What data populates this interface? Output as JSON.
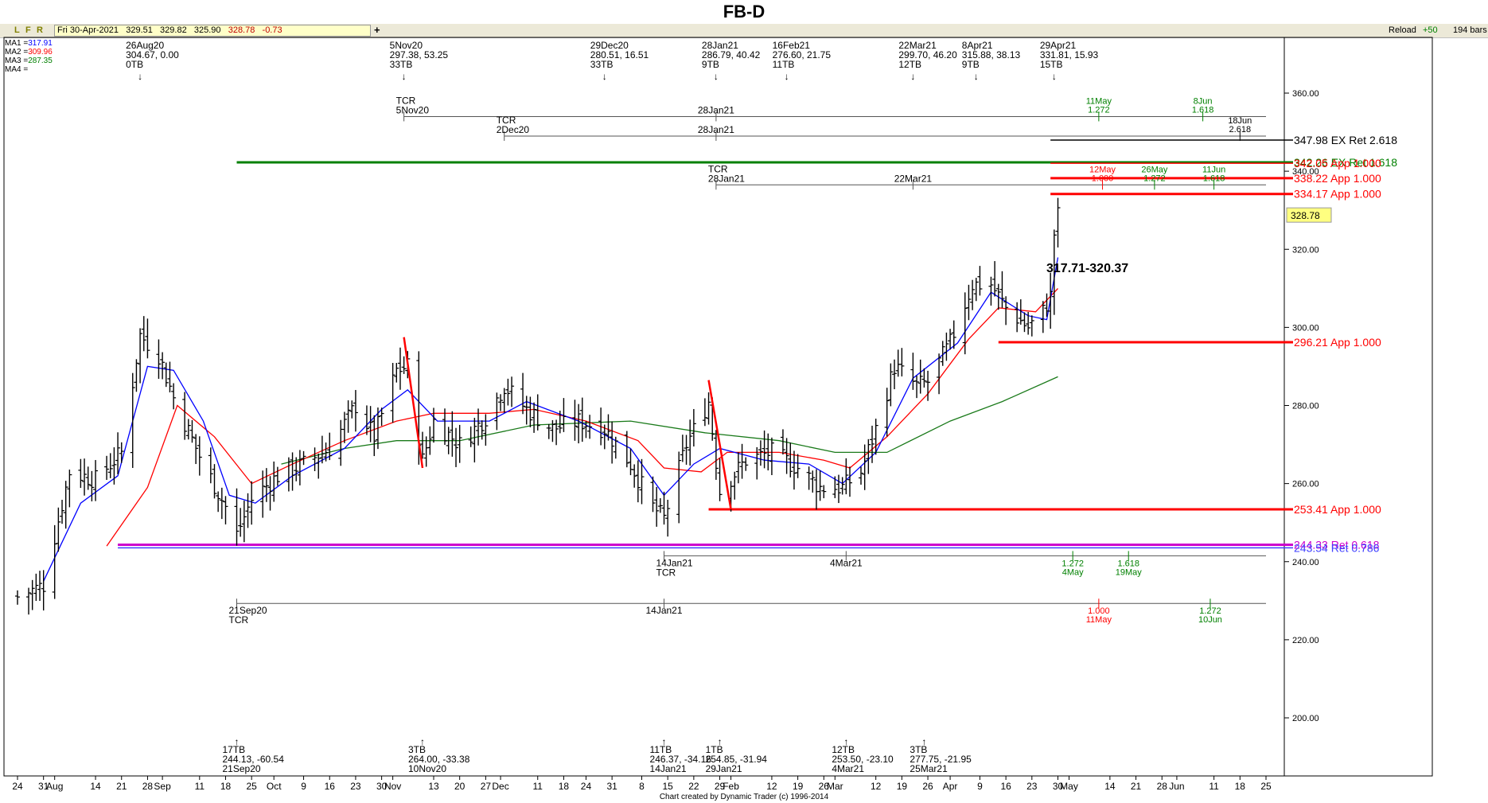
{
  "title": "FB-D",
  "toolbar": {
    "letters": [
      "L",
      "F",
      "R"
    ],
    "quote": [
      "Fri 30-Apr-2021",
      "329.51",
      "329.82",
      "325.90",
      "328.78",
      "-0.73"
    ],
    "plus": "+",
    "reload": "Reload",
    "plus50": "+50",
    "bars": "194 bars"
  },
  "ma_legend": [
    {
      "label": "MA1 =",
      "value": "317.91",
      "color": "#0000ff"
    },
    {
      "label": "MA2 =",
      "value": "309.96",
      "color": "#ff0000"
    },
    {
      "label": "MA3 =",
      "value": "287.35",
      "color": "#008000"
    },
    {
      "label": "MA4 =",
      "value": "",
      "color": "#000000"
    }
  ],
  "colors": {
    "ma1": "#0000ff",
    "ma2": "#ff0000",
    "ma3": "#1a7a1a",
    "red": "#ff0000",
    "green": "#008000",
    "magenta": "#cc00cc",
    "blue": "#0000ff"
  },
  "footer": "Chart created by Dynamic Trader  (c)  1996-2014",
  "last_price": "328.78",
  "chart_data": {
    "type": "ohlc-bar",
    "x_start": "2020-07-24",
    "x_end": "2021-06-25",
    "ylim": [
      185,
      373
    ],
    "y_ticks": [
      200,
      220,
      240,
      260,
      280,
      300,
      320,
      340,
      360
    ],
    "y_tick_labels": [
      "200.00",
      "220.00",
      "240.00",
      "260.00",
      "280.00",
      "300.00",
      "320.00",
      "340.00",
      "360.00"
    ],
    "x_ticks": [
      {
        "date": "2020-07-24",
        "label": "24"
      },
      {
        "date": "2020-07-31",
        "label": "31"
      },
      {
        "date": "2020-08-03",
        "label": "Aug"
      },
      {
        "date": "2020-08-14",
        "label": "14"
      },
      {
        "date": "2020-08-21",
        "label": "21"
      },
      {
        "date": "2020-08-28",
        "label": "28"
      },
      {
        "date": "2020-09-01",
        "label": "Sep"
      },
      {
        "date": "2020-09-11",
        "label": "11"
      },
      {
        "date": "2020-09-18",
        "label": "18"
      },
      {
        "date": "2020-09-25",
        "label": "25"
      },
      {
        "date": "2020-10-01",
        "label": "Oct"
      },
      {
        "date": "2020-10-09",
        "label": "9"
      },
      {
        "date": "2020-10-16",
        "label": "16"
      },
      {
        "date": "2020-10-23",
        "label": "23"
      },
      {
        "date": "2020-10-30",
        "label": "30"
      },
      {
        "date": "2020-11-02",
        "label": "Nov"
      },
      {
        "date": "2020-11-13",
        "label": "13"
      },
      {
        "date": "2020-11-20",
        "label": "20"
      },
      {
        "date": "2020-11-27",
        "label": "27"
      },
      {
        "date": "2020-12-01",
        "label": "Dec"
      },
      {
        "date": "2020-12-11",
        "label": "11"
      },
      {
        "date": "2020-12-18",
        "label": "18"
      },
      {
        "date": "2020-12-24",
        "label": "24"
      },
      {
        "date": "2020-12-31",
        "label": "31"
      },
      {
        "date": "2021-01-08",
        "label": "8"
      },
      {
        "date": "2021-01-15",
        "label": "15"
      },
      {
        "date": "2021-01-22",
        "label": "22"
      },
      {
        "date": "2021-01-29",
        "label": "29"
      },
      {
        "date": "2021-02-01",
        "label": "Feb"
      },
      {
        "date": "2021-02-12",
        "label": "12"
      },
      {
        "date": "2021-02-19",
        "label": "19"
      },
      {
        "date": "2021-02-26",
        "label": "26"
      },
      {
        "date": "2021-03-01",
        "label": "Mar"
      },
      {
        "date": "2021-03-12",
        "label": "12"
      },
      {
        "date": "2021-03-19",
        "label": "19"
      },
      {
        "date": "2021-03-26",
        "label": "26"
      },
      {
        "date": "2021-04-01",
        "label": "Apr"
      },
      {
        "date": "2021-04-09",
        "label": "9"
      },
      {
        "date": "2021-04-16",
        "label": "16"
      },
      {
        "date": "2021-04-23",
        "label": "23"
      },
      {
        "date": "2021-04-30",
        "label": "30"
      },
      {
        "date": "2021-05-03",
        "label": "May"
      },
      {
        "date": "2021-05-14",
        "label": "14"
      },
      {
        "date": "2021-05-21",
        "label": "21"
      },
      {
        "date": "2021-05-28",
        "label": "28"
      },
      {
        "date": "2021-06-01",
        "label": "Jun"
      },
      {
        "date": "2021-06-11",
        "label": "11"
      },
      {
        "date": "2021-06-18",
        "label": "18"
      },
      {
        "date": "2021-06-25",
        "label": "25"
      }
    ],
    "price_path": [
      [
        "2020-07-24",
        231
      ],
      [
        "2020-07-31",
        234
      ],
      [
        "2020-08-07",
        263
      ],
      [
        "2020-08-14",
        261
      ],
      [
        "2020-08-21",
        268
      ],
      [
        "2020-08-26",
        298
      ],
      [
        "2020-08-31",
        293
      ],
      [
        "2020-09-04",
        282
      ],
      [
        "2020-09-11",
        267
      ],
      [
        "2020-09-18",
        254
      ],
      [
        "2020-09-21",
        247
      ],
      [
        "2020-09-25",
        256
      ],
      [
        "2020-10-02",
        262
      ],
      [
        "2020-10-09",
        265
      ],
      [
        "2020-10-16",
        269
      ],
      [
        "2020-10-23",
        280
      ],
      [
        "2020-10-28",
        272
      ],
      [
        "2020-11-03",
        289
      ],
      [
        "2020-11-06",
        290
      ],
      [
        "2020-11-10",
        266
      ],
      [
        "2020-11-13",
        276
      ],
      [
        "2020-11-20",
        270
      ],
      [
        "2020-11-27",
        277
      ],
      [
        "2020-12-02",
        285
      ],
      [
        "2020-12-08",
        279
      ],
      [
        "2020-12-15",
        274
      ],
      [
        "2020-12-22",
        276
      ],
      [
        "2020-12-29",
        274
      ],
      [
        "2021-01-05",
        265
      ],
      [
        "2021-01-11",
        254
      ],
      [
        "2021-01-14",
        251
      ],
      [
        "2021-01-20",
        270
      ],
      [
        "2021-01-26",
        281
      ],
      [
        "2021-01-29",
        258
      ],
      [
        "2021-02-05",
        266
      ],
      [
        "2021-02-12",
        268
      ],
      [
        "2021-02-19",
        264
      ],
      [
        "2021-02-25",
        259
      ],
      [
        "2021-03-03",
        259
      ],
      [
        "2021-03-08",
        263
      ],
      [
        "2021-03-12",
        274
      ],
      [
        "2021-03-17",
        290
      ],
      [
        "2021-03-23",
        285
      ],
      [
        "2021-03-26",
        286
      ],
      [
        "2021-04-01",
        296
      ],
      [
        "2021-04-07",
        311
      ],
      [
        "2021-04-12",
        311
      ],
      [
        "2021-04-16",
        305
      ],
      [
        "2021-04-22",
        300
      ],
      [
        "2021-04-26",
        304
      ],
      [
        "2021-04-28",
        308
      ],
      [
        "2021-04-29",
        324
      ],
      [
        "2021-04-30",
        328.78
      ]
    ],
    "ma1_points": [
      [
        "2020-07-31",
        235
      ],
      [
        "2020-08-10",
        255
      ],
      [
        "2020-08-20",
        262
      ],
      [
        "2020-08-28",
        290
      ],
      [
        "2020-09-04",
        289
      ],
      [
        "2020-09-12",
        276
      ],
      [
        "2020-09-19",
        257
      ],
      [
        "2020-09-26",
        255
      ],
      [
        "2020-10-06",
        262
      ],
      [
        "2020-10-20",
        269
      ],
      [
        "2020-10-30",
        279
      ],
      [
        "2020-11-06",
        284
      ],
      [
        "2020-11-14",
        276
      ],
      [
        "2020-11-28",
        276
      ],
      [
        "2020-12-08",
        281
      ],
      [
        "2020-12-22",
        276
      ],
      [
        "2021-01-05",
        269
      ],
      [
        "2021-01-14",
        257
      ],
      [
        "2021-01-22",
        265
      ],
      [
        "2021-01-29",
        269
      ],
      [
        "2021-02-10",
        266
      ],
      [
        "2021-02-22",
        265
      ],
      [
        "2021-03-03",
        260
      ],
      [
        "2021-03-12",
        268
      ],
      [
        "2021-03-22",
        287
      ],
      [
        "2021-04-03",
        296
      ],
      [
        "2021-04-12",
        309
      ],
      [
        "2021-04-22",
        303
      ],
      [
        "2021-04-27",
        302
      ],
      [
        "2021-04-30",
        317.91
      ]
    ],
    "ma2_points": [
      [
        "2020-08-17",
        244
      ],
      [
        "2020-08-28",
        259
      ],
      [
        "2020-09-05",
        280
      ],
      [
        "2020-09-15",
        272
      ],
      [
        "2020-09-25",
        260
      ],
      [
        "2020-10-06",
        265
      ],
      [
        "2020-10-20",
        271
      ],
      [
        "2020-11-03",
        276
      ],
      [
        "2020-11-13",
        278
      ],
      [
        "2020-11-28",
        278
      ],
      [
        "2020-12-10",
        279
      ],
      [
        "2020-12-24",
        276
      ],
      [
        "2021-01-07",
        271
      ],
      [
        "2021-01-14",
        264
      ],
      [
        "2021-01-24",
        263
      ],
      [
        "2021-01-31",
        268
      ],
      [
        "2021-02-14",
        268
      ],
      [
        "2021-02-26",
        266
      ],
      [
        "2021-03-05",
        264
      ],
      [
        "2021-03-15",
        272
      ],
      [
        "2021-03-26",
        283
      ],
      [
        "2021-04-06",
        297
      ],
      [
        "2021-04-14",
        305
      ],
      [
        "2021-04-24",
        304
      ],
      [
        "2021-04-30",
        309.96
      ]
    ],
    "ma3_points": [
      [
        "2020-10-03",
        265
      ],
      [
        "2020-10-20",
        269
      ],
      [
        "2020-11-03",
        271
      ],
      [
        "2020-11-20",
        271
      ],
      [
        "2020-12-10",
        275
      ],
      [
        "2021-01-05",
        276
      ],
      [
        "2021-01-25",
        273
      ],
      [
        "2021-02-14",
        271
      ],
      [
        "2021-03-01",
        268
      ],
      [
        "2021-03-15",
        268
      ],
      [
        "2021-04-01",
        276
      ],
      [
        "2021-04-15",
        281
      ],
      [
        "2021-04-30",
        287.35
      ]
    ],
    "swings_top": [
      {
        "date": "2020-08-26",
        "lines": [
          "26Aug20",
          "304.67, 0.00",
          "0TB"
        ]
      },
      {
        "date": "2020-11-05",
        "lines": [
          "5Nov20",
          "297.38, 53.25",
          "33TB"
        ]
      },
      {
        "date": "2020-12-29",
        "lines": [
          "29Dec20",
          "280.51, 16.51",
          "33TB"
        ]
      },
      {
        "date": "2021-01-28",
        "lines": [
          "28Jan21",
          "286.79, 40.42",
          "9TB"
        ]
      },
      {
        "date": "2021-02-16",
        "lines": [
          "16Feb21",
          "276.60, 21.75",
          "11TB"
        ]
      },
      {
        "date": "2021-03-22",
        "lines": [
          "22Mar21",
          "299.70, 46.20",
          "12TB"
        ]
      },
      {
        "date": "2021-04-08",
        "lines": [
          "8Apr21",
          "315.88, 38.13",
          "9TB"
        ]
      },
      {
        "date": "2021-04-29",
        "lines": [
          "29Apr21",
          "331.81, 15.93",
          "15TB"
        ]
      }
    ],
    "swings_bottom": [
      {
        "date": "2020-09-21",
        "lines": [
          "17TB",
          "244.13, -60.54",
          "21Sep20"
        ]
      },
      {
        "date": "2020-11-10",
        "lines": [
          "3TB",
          "264.00, -33.38",
          "10Nov20"
        ]
      },
      {
        "date": "2021-01-14",
        "lines": [
          "11TB",
          "246.37, -34.16",
          "14Jan21"
        ]
      },
      {
        "date": "2021-01-29",
        "lines": [
          "1TB",
          "254.85, -31.94",
          "29Jan21"
        ]
      },
      {
        "date": "2021-03-04",
        "lines": [
          "12TB",
          "253.50, -23.10",
          "4Mar21"
        ]
      },
      {
        "date": "2021-03-25",
        "lines": [
          "3TB",
          "277.75, -21.95",
          "25Mar21"
        ]
      }
    ],
    "price_levels": [
      {
        "price": 347.98,
        "label": "347.98 EX Ret 2.618",
        "color": "#000000",
        "x0": "2021-04-28",
        "thick": false
      },
      {
        "price": 342.26,
        "label": "342.26 EX Ret 1.618",
        "color": "#008000",
        "x0": "2020-09-21",
        "thick": true
      },
      {
        "price": 342.05,
        "label": "342.05 App 1.000",
        "color": "#ff0000",
        "x0": "2021-04-28",
        "thick": false
      },
      {
        "price": 338.22,
        "label": "338.22 App 1.000",
        "color": "#ff0000",
        "x0": "2021-04-28",
        "thick": true
      },
      {
        "price": 334.17,
        "label": "334.17 App 1.000",
        "color": "#ff0000",
        "x0": "2021-04-28",
        "thick": true
      },
      {
        "price": 296.21,
        "label": "296.21 App 1.000",
        "color": "#ff0000",
        "x0": "2021-04-14",
        "thick": true
      },
      {
        "price": 253.41,
        "label": "253.41 App 1.000",
        "color": "#ff0000",
        "x0": "2021-01-26",
        "thick": true
      },
      {
        "price": 244.33,
        "label": "244.33 Ret 0.618",
        "color": "#cc00cc",
        "x0": "2020-08-20",
        "thick": true
      },
      {
        "price": 243.54,
        "label": "243.54 Ret 0.786",
        "color": "#4040ff",
        "x0": "2020-08-20",
        "thick": false
      }
    ],
    "range_label": "317.71-320.37",
    "last_price_tag": "328.78"
  },
  "time_top": [
    {
      "y_price": 354,
      "x0": "2020-11-05",
      "x1": "2021-06-25",
      "left_label": [
        "TCR",
        "5Nov20"
      ],
      "mid_label": "28Jan21",
      "mid_date": "2021-01-28",
      "projections": [
        {
          "date": "2021-05-11",
          "lines": [
            "11May",
            "1.272"
          ],
          "color": "#008000"
        },
        {
          "date": "2021-06-08",
          "lines": [
            "8Jun",
            "1.618"
          ],
          "color": "#008000"
        }
      ]
    },
    {
      "y_price": 349,
      "x0": "2020-12-02",
      "x1": "2021-06-25",
      "left_label": [
        "TCR",
        "2Dec20"
      ],
      "mid_label": "28Jan21",
      "mid_date": "2021-01-28",
      "projections": [
        {
          "date": "2021-06-18",
          "lines": [
            "18Jun",
            "2.618"
          ],
          "color": "#000000"
        }
      ]
    },
    {
      "y_price": 336.5,
      "x0": "2021-01-28",
      "x1": "2021-06-25",
      "left_label": [
        "TCR",
        "28Jan21"
      ],
      "mid_label": "22Mar21",
      "mid_date": "2021-03-22",
      "projections": [
        {
          "date": "2021-05-12",
          "lines": [
            "12May",
            "1.000"
          ],
          "color": "#ff0000"
        },
        {
          "date": "2021-05-26",
          "lines": [
            "26May",
            "1.272"
          ],
          "color": "#008000"
        },
        {
          "date": "2021-06-11",
          "lines": [
            "11Jun",
            "1.618"
          ],
          "color": "#008000"
        }
      ]
    }
  ],
  "time_bottom": [
    {
      "y_price": 241.5,
      "x0": "2021-01-14",
      "x1": "2021-06-25",
      "left_label": [
        "14Jan21",
        "TCR"
      ],
      "mid_label": "4Mar21",
      "mid_date": "2021-03-04",
      "projections": [
        {
          "date": "2021-05-04",
          "lines": [
            "1.272",
            "4May"
          ],
          "color": "#008000"
        },
        {
          "date": "2021-05-19",
          "lines": [
            "1.618",
            "19May"
          ],
          "color": "#008000"
        }
      ]
    },
    {
      "y_price": 229.3,
      "x0": "2020-09-21",
      "x1": "2021-06-25",
      "left_label": [
        "21Sep20",
        "TCR"
      ],
      "mid_label": "14Jan21",
      "mid_date": "2021-01-14",
      "projections": [
        {
          "date": "2021-05-11",
          "lines": [
            "1.000",
            "11May"
          ],
          "color": "#ff0000"
        },
        {
          "date": "2021-06-10",
          "lines": [
            "1.272",
            "10Jun"
          ],
          "color": "#008000"
        }
      ]
    }
  ],
  "red_swing_lines": [
    [
      [
        "2020-11-05",
        297.5
      ],
      [
        "2020-11-10",
        264
      ]
    ],
    [
      [
        "2021-01-26",
        286.5
      ],
      [
        "2021-02-01",
        253.4
      ]
    ]
  ]
}
